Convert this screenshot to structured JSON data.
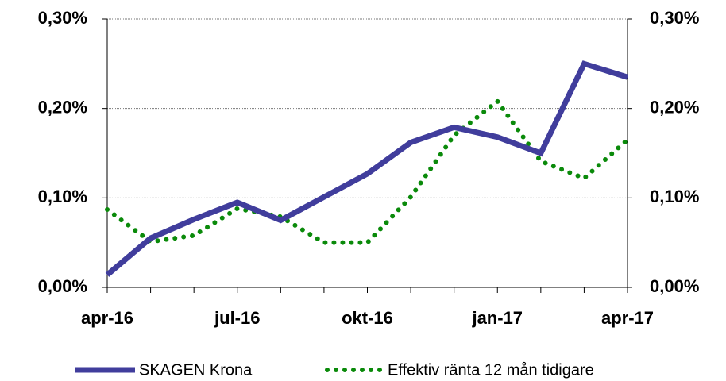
{
  "chart_data": {
    "type": "line",
    "categories": [
      "apr-16",
      null,
      null,
      "jul-16",
      null,
      null,
      "okt-16",
      null,
      null,
      "jan-17",
      null,
      null,
      "apr-17"
    ],
    "series": [
      {
        "name": "SKAGEN Krona",
        "color": "#403d9c",
        "values": [
          0.014,
          0.055,
          0.076,
          0.095,
          0.075,
          0.101,
          0.127,
          0.162,
          0.179,
          0.168,
          0.15,
          0.25,
          0.235
        ]
      },
      {
        "name": "Effektiv ränta 12 mån tidigare",
        "color": "#0a8a0a",
        "values": [
          0.087,
          0.051,
          0.058,
          0.088,
          0.079,
          0.05,
          0.05,
          0.101,
          0.17,
          0.208,
          0.141,
          0.122,
          0.165
        ]
      }
    ],
    "ylim": [
      0,
      0.3
    ],
    "yticks": [
      {
        "value": 0,
        "label": "0,00%"
      },
      {
        "value": 0.1,
        "label": "0,10%"
      },
      {
        "value": 0.2,
        "label": "0,20%"
      },
      {
        "value": 0.3,
        "label": "0,30%"
      }
    ],
    "y2lim": [
      0,
      0.3
    ],
    "y2ticks": [
      {
        "value": 0,
        "label": "0,00%"
      },
      {
        "value": 0.1,
        "label": "0,10%"
      },
      {
        "value": 0.2,
        "label": "0,20%"
      },
      {
        "value": 0.3,
        "label": "0,30%"
      }
    ],
    "grid": true,
    "legend": "bottom"
  }
}
